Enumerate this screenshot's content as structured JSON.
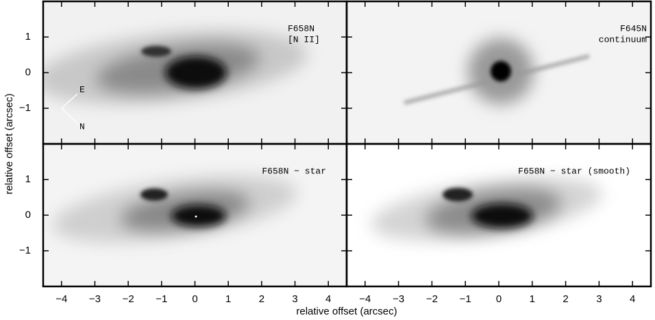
{
  "figure": {
    "xlabel": "relative offset (arcsec)",
    "ylabel": "relative offset (arcsec)",
    "xlim": [
      -4.55,
      4.55
    ],
    "ylim": [
      -2,
      2
    ],
    "xticks": [
      {
        "value": -4,
        "label": "−4"
      },
      {
        "value": -3,
        "label": "−3"
      },
      {
        "value": -2,
        "label": "−2"
      },
      {
        "value": -1,
        "label": "−1"
      },
      0,
      1,
      2,
      3,
      4
    ],
    "yticks": [
      {
        "value": -1,
        "label": "−1"
      },
      0,
      1
    ],
    "panels": [
      {
        "lines": [
          "F658N",
          "[N II]"
        ]
      },
      {
        "lines": [
          "F645N",
          "continuum"
        ]
      },
      {
        "lines": [
          "F658N − star"
        ]
      },
      {
        "lines": [
          "F658N − star (smooth)"
        ]
      }
    ],
    "compass": [
      "E",
      "N"
    ]
  }
}
